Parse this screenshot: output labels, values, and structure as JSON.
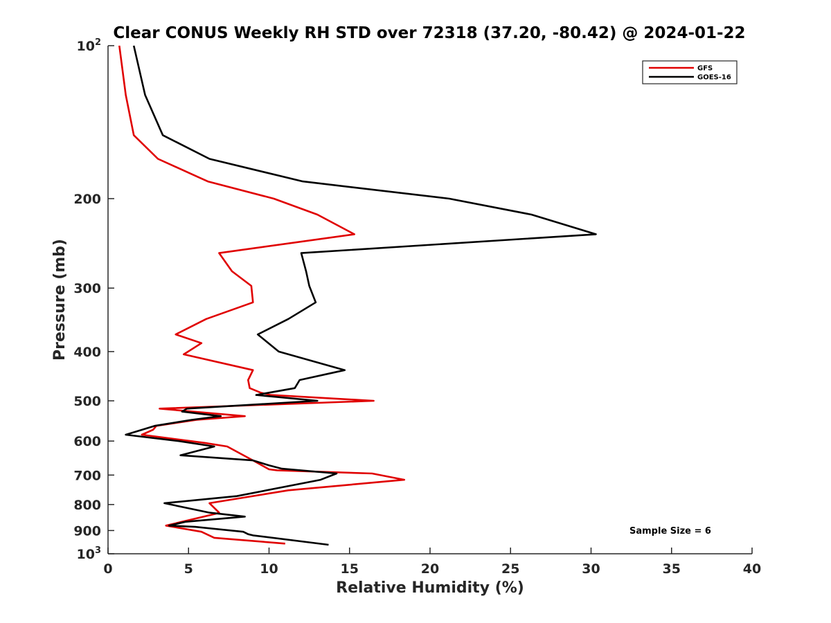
{
  "chart_data": {
    "type": "line",
    "title": "Clear CONUS Weekly RH STD over 72318 (37.20, -80.42) @ 2024-01-22",
    "xlabel": "Relative Humidity (%)",
    "ylabel": "Pressure (mb)",
    "xlim": [
      0,
      40
    ],
    "ylim": [
      100,
      1000
    ],
    "yscale": "log",
    "y_reversed": true,
    "x_ticks": [
      0,
      5,
      10,
      15,
      20,
      25,
      30,
      35,
      40
    ],
    "y_ticks": [
      {
        "value": 100,
        "base": "10",
        "sup": "2"
      },
      {
        "value": 200,
        "text": "200"
      },
      {
        "value": 300,
        "text": "300"
      },
      {
        "value": 400,
        "text": "400"
      },
      {
        "value": 500,
        "text": "500"
      },
      {
        "value": 600,
        "text": "600"
      },
      {
        "value": 700,
        "text": "700"
      },
      {
        "value": 800,
        "text": "800"
      },
      {
        "value": 900,
        "text": "900"
      },
      {
        "value": 1000,
        "base": "10",
        "sup": "3"
      }
    ],
    "grid": false,
    "legend_position": "top-right",
    "series": [
      {
        "name": "GFS",
        "color": "#e00000",
        "points": [
          [
            0.7,
            100
          ],
          [
            1.1,
            125
          ],
          [
            1.6,
            150
          ],
          [
            3.1,
            167
          ],
          [
            6.2,
            185
          ],
          [
            10.3,
            200
          ],
          [
            13.0,
            215
          ],
          [
            15.3,
            235
          ],
          [
            6.9,
            256
          ],
          [
            7.7,
            278
          ],
          [
            8.9,
            297
          ],
          [
            9.0,
            320
          ],
          [
            6.1,
            345
          ],
          [
            4.2,
            370
          ],
          [
            5.8,
            385
          ],
          [
            4.7,
            405
          ],
          [
            9.0,
            435
          ],
          [
            8.7,
            455
          ],
          [
            8.8,
            472
          ],
          [
            9.5,
            482
          ],
          [
            10.1,
            487
          ],
          [
            16.5,
            500
          ],
          [
            3.2,
            518
          ],
          [
            8.5,
            536
          ],
          [
            5.5,
            545
          ],
          [
            3.0,
            560
          ],
          [
            2.8,
            570
          ],
          [
            2.1,
            583
          ],
          [
            6.0,
            605
          ],
          [
            7.4,
            615
          ],
          [
            9.0,
            655
          ],
          [
            10.0,
            682
          ],
          [
            10.5,
            685
          ],
          [
            16.4,
            695
          ],
          [
            18.4,
            715
          ],
          [
            11.2,
            750
          ],
          [
            6.3,
            795
          ],
          [
            6.9,
            830
          ],
          [
            6.7,
            834
          ],
          [
            3.6,
            880
          ],
          [
            5.8,
            905
          ],
          [
            6.6,
            930
          ],
          [
            11.0,
            955
          ]
        ]
      },
      {
        "name": "GOES-16",
        "color": "#000000",
        "points": [
          [
            1.6,
            100
          ],
          [
            2.3,
            125
          ],
          [
            3.4,
            150
          ],
          [
            6.3,
            167
          ],
          [
            12.1,
            185
          ],
          [
            21.2,
            200
          ],
          [
            26.3,
            215
          ],
          [
            30.3,
            235
          ],
          [
            12.0,
            256
          ],
          [
            12.3,
            278
          ],
          [
            12.5,
            297
          ],
          [
            12.9,
            320
          ],
          [
            11.2,
            345
          ],
          [
            9.3,
            370
          ],
          [
            10.6,
            400
          ],
          [
            14.7,
            435
          ],
          [
            11.9,
            455
          ],
          [
            11.6,
            472
          ],
          [
            9.2,
            487
          ],
          [
            13.0,
            500
          ],
          [
            4.9,
            518
          ],
          [
            4.6,
            525
          ],
          [
            7.0,
            536
          ],
          [
            5.2,
            545
          ],
          [
            2.9,
            560
          ],
          [
            1.1,
            583
          ],
          [
            4.4,
            600
          ],
          [
            6.6,
            615
          ],
          [
            4.5,
            640
          ],
          [
            9.0,
            655
          ],
          [
            10.0,
            670
          ],
          [
            10.8,
            680
          ],
          [
            14.2,
            695
          ],
          [
            13.2,
            715
          ],
          [
            8.0,
            770
          ],
          [
            3.5,
            795
          ],
          [
            6.3,
            830
          ],
          [
            8.5,
            845
          ],
          [
            4.8,
            865
          ],
          [
            3.8,
            880
          ],
          [
            5.4,
            885
          ],
          [
            8.4,
            905
          ],
          [
            8.7,
            915
          ],
          [
            9.0,
            920
          ],
          [
            13.7,
            960
          ]
        ]
      }
    ],
    "annotation": "Sample Size = 6"
  }
}
